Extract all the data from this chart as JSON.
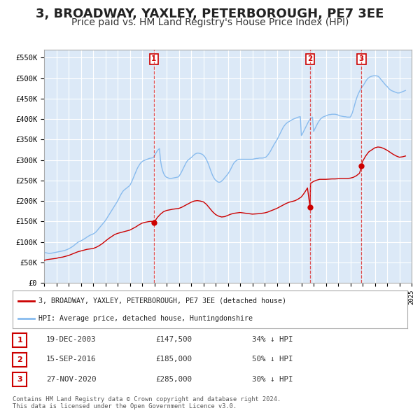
{
  "title": "3, BROADWAY, YAXLEY, PETERBOROUGH, PE7 3EE",
  "subtitle": "Price paid vs. HM Land Registry's House Price Index (HPI)",
  "title_fontsize": 13,
  "subtitle_fontsize": 10,
  "background_color": "#ffffff",
  "plot_bg_color": "#dce9f7",
  "grid_color": "#ffffff",
  "ylim": [
    0,
    570000
  ],
  "ytick_labels": [
    "£0",
    "£50K",
    "£100K",
    "£150K",
    "£200K",
    "£250K",
    "£300K",
    "£350K",
    "£400K",
    "£450K",
    "£500K",
    "£550K"
  ],
  "ytick_values": [
    0,
    50000,
    100000,
    150000,
    200000,
    250000,
    300000,
    350000,
    400000,
    450000,
    500000,
    550000
  ],
  "red_line_color": "#cc0000",
  "blue_line_color": "#88bbee",
  "sale_marker_color": "#cc0000",
  "vline_color": "#dd3333",
  "legend_label_red": "3, BROADWAY, YAXLEY, PETERBOROUGH, PE7 3EE (detached house)",
  "legend_label_blue": "HPI: Average price, detached house, Huntingdonshire",
  "sale_date_nums": [
    2003.963,
    2016.708,
    2020.91
  ],
  "sale_prices": [
    147500,
    185000,
    285000
  ],
  "sale_labels": [
    "1",
    "2",
    "3"
  ],
  "sale_info": [
    {
      "label": "1",
      "date": "19-DEC-2003",
      "price": "£147,500",
      "pct": "34% ↓ HPI"
    },
    {
      "label": "2",
      "date": "15-SEP-2016",
      "price": "£185,000",
      "pct": "50% ↓ HPI"
    },
    {
      "label": "3",
      "date": "27-NOV-2020",
      "price": "£285,000",
      "pct": "30% ↓ HPI"
    }
  ],
  "footer": "Contains HM Land Registry data © Crown copyright and database right 2024.\nThis data is licensed under the Open Government Licence v3.0."
}
